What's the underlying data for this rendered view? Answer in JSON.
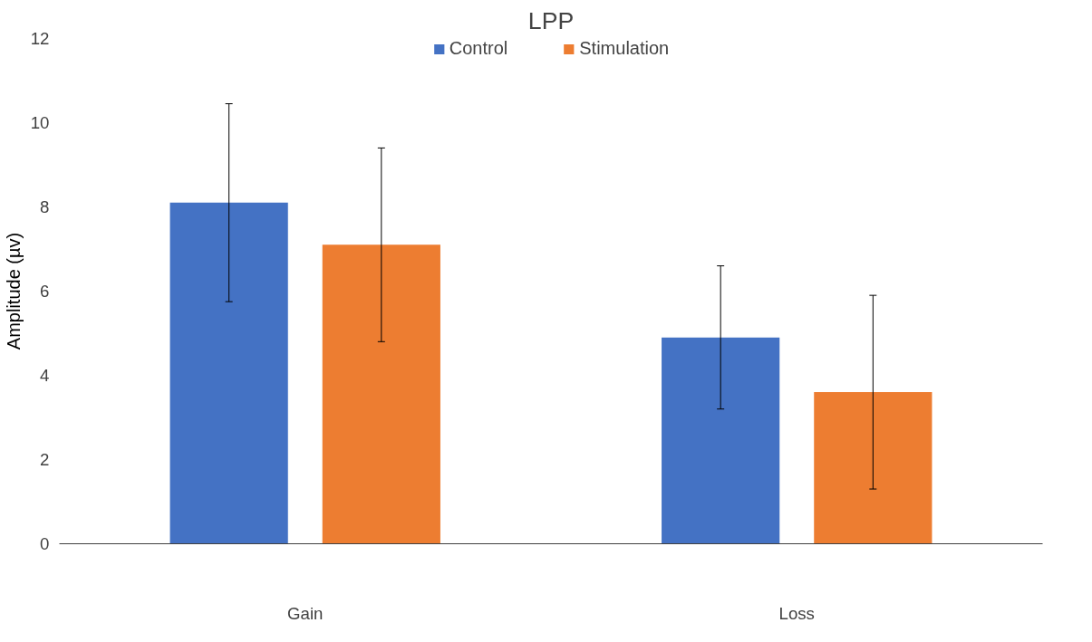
{
  "chart_data": {
    "type": "bar",
    "title": "LPP",
    "ylabel": "Amplitude (µv)",
    "categories": [
      "Gain",
      "Loss"
    ],
    "series": [
      {
        "name": "Control",
        "color": "#4472c4",
        "values": [
          8.1,
          4.9
        ],
        "errors": [
          2.35,
          1.7
        ]
      },
      {
        "name": "Stimulation",
        "color": "#ed7d31",
        "values": [
          7.1,
          3.6
        ],
        "errors": [
          2.3,
          2.3
        ]
      }
    ],
    "ylim": [
      0,
      12
    ],
    "yticks": [
      0,
      2,
      4,
      6,
      8,
      10,
      12
    ],
    "grid": false,
    "legend": "top"
  }
}
